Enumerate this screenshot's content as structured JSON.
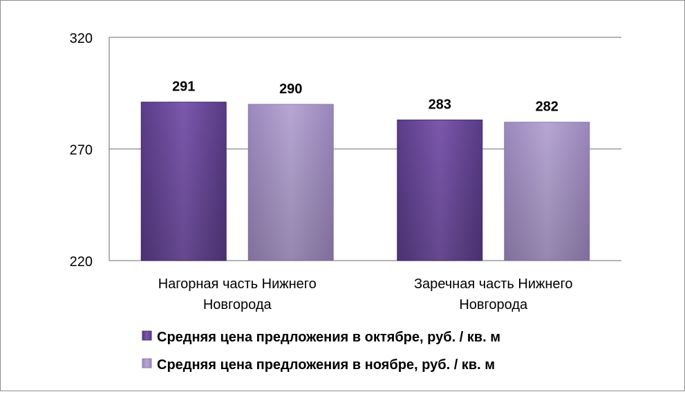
{
  "chart_data": {
    "type": "bar",
    "categories": [
      [
        "Нагорная часть Нижнего",
        "Новгорода"
      ],
      [
        "Заречная часть Нижнего",
        "Новгорода"
      ]
    ],
    "series": [
      {
        "name": "Средняя цена предложения в октябре, руб. / кв. м",
        "values": [
          291,
          283
        ],
        "labels": [
          "291",
          "283"
        ],
        "color": "#6a4a9a"
      },
      {
        "name": "Средняя цена предложения в ноябре, руб. / кв. м",
        "values": [
          290,
          282
        ],
        "labels": [
          "290",
          "282"
        ],
        "color": "#ad9bcb"
      }
    ],
    "ylim": [
      220,
      320
    ],
    "yticks": [
      "220",
      "270",
      "320"
    ],
    "grid": true,
    "legend_position": "bottom"
  }
}
